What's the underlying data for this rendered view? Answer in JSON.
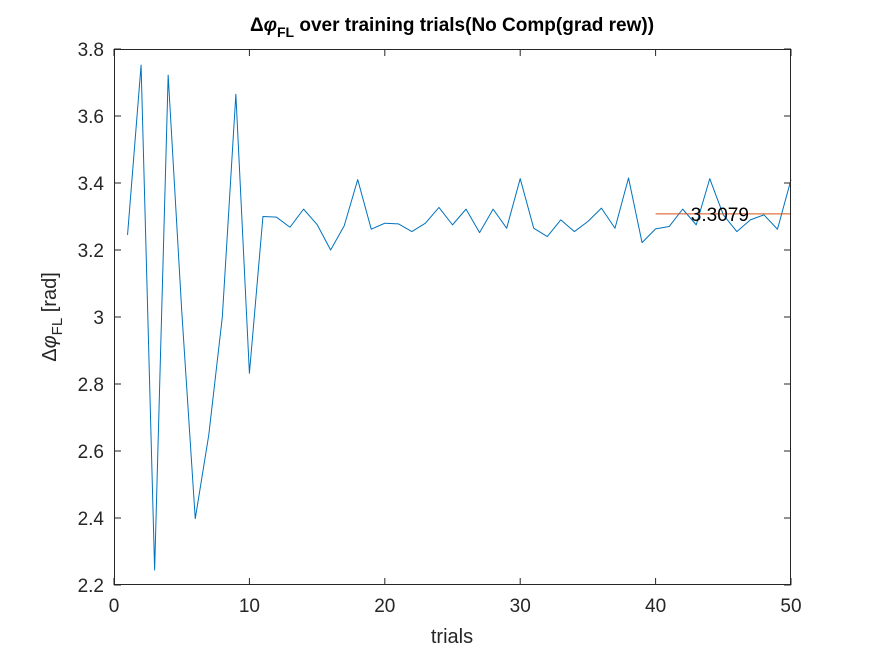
{
  "chart_data": {
    "type": "line",
    "title": {
      "prefix": "Δ",
      "phi": "φ",
      "sub": "FL",
      "rest": " over training trials(No Comp(grad rew))"
    },
    "xlabel": "trials",
    "ylabel": {
      "prefix": "Δ",
      "phi": "φ",
      "sub": "FL",
      "rest": " [rad]"
    },
    "xlim": [
      0,
      50
    ],
    "ylim": [
      2.2,
      3.8
    ],
    "xticks": [
      0,
      10,
      20,
      30,
      40,
      50
    ],
    "yticks": [
      2.2,
      2.4,
      2.6,
      2.8,
      3,
      3.2,
      3.4,
      3.6,
      3.8
    ],
    "ytick_labels": [
      "2.2",
      "2.4",
      "2.6",
      "2.8",
      "3",
      "3.2",
      "3.4",
      "3.6",
      "3.8"
    ],
    "grid": false,
    "series": [
      {
        "color": "#0072BD",
        "x": [
          1,
          2,
          3,
          4,
          5,
          6,
          7,
          8,
          9,
          10,
          11,
          12,
          13,
          14,
          15,
          16,
          17,
          18,
          19,
          20,
          21,
          22,
          23,
          24,
          25,
          26,
          27,
          28,
          29,
          30,
          31,
          32,
          33,
          34,
          35,
          36,
          37,
          38,
          39,
          40,
          41,
          42,
          43,
          44,
          45,
          46,
          47,
          48,
          49,
          50
        ],
        "y": [
          3.245,
          3.752,
          2.245,
          3.722,
          3.02,
          2.398,
          2.648,
          3.0,
          3.665,
          2.832,
          3.3,
          3.298,
          3.268,
          3.322,
          3.276,
          3.2,
          3.272,
          3.41,
          3.262,
          3.28,
          3.278,
          3.255,
          3.28,
          3.327,
          3.275,
          3.322,
          3.252,
          3.322,
          3.265,
          3.413,
          3.265,
          3.24,
          3.29,
          3.255,
          3.285,
          3.325,
          3.265,
          3.415,
          3.222,
          3.263,
          3.27,
          3.322,
          3.275,
          3.413,
          3.305,
          3.255,
          3.29,
          3.305,
          3.262,
          3.41
        ]
      },
      {
        "color": "#D95319",
        "x": [
          40,
          50
        ],
        "y": [
          3.3079,
          3.3079
        ]
      }
    ],
    "annotation": {
      "text": "3.3079",
      "x": 42.6,
      "y": 3.3079
    }
  }
}
